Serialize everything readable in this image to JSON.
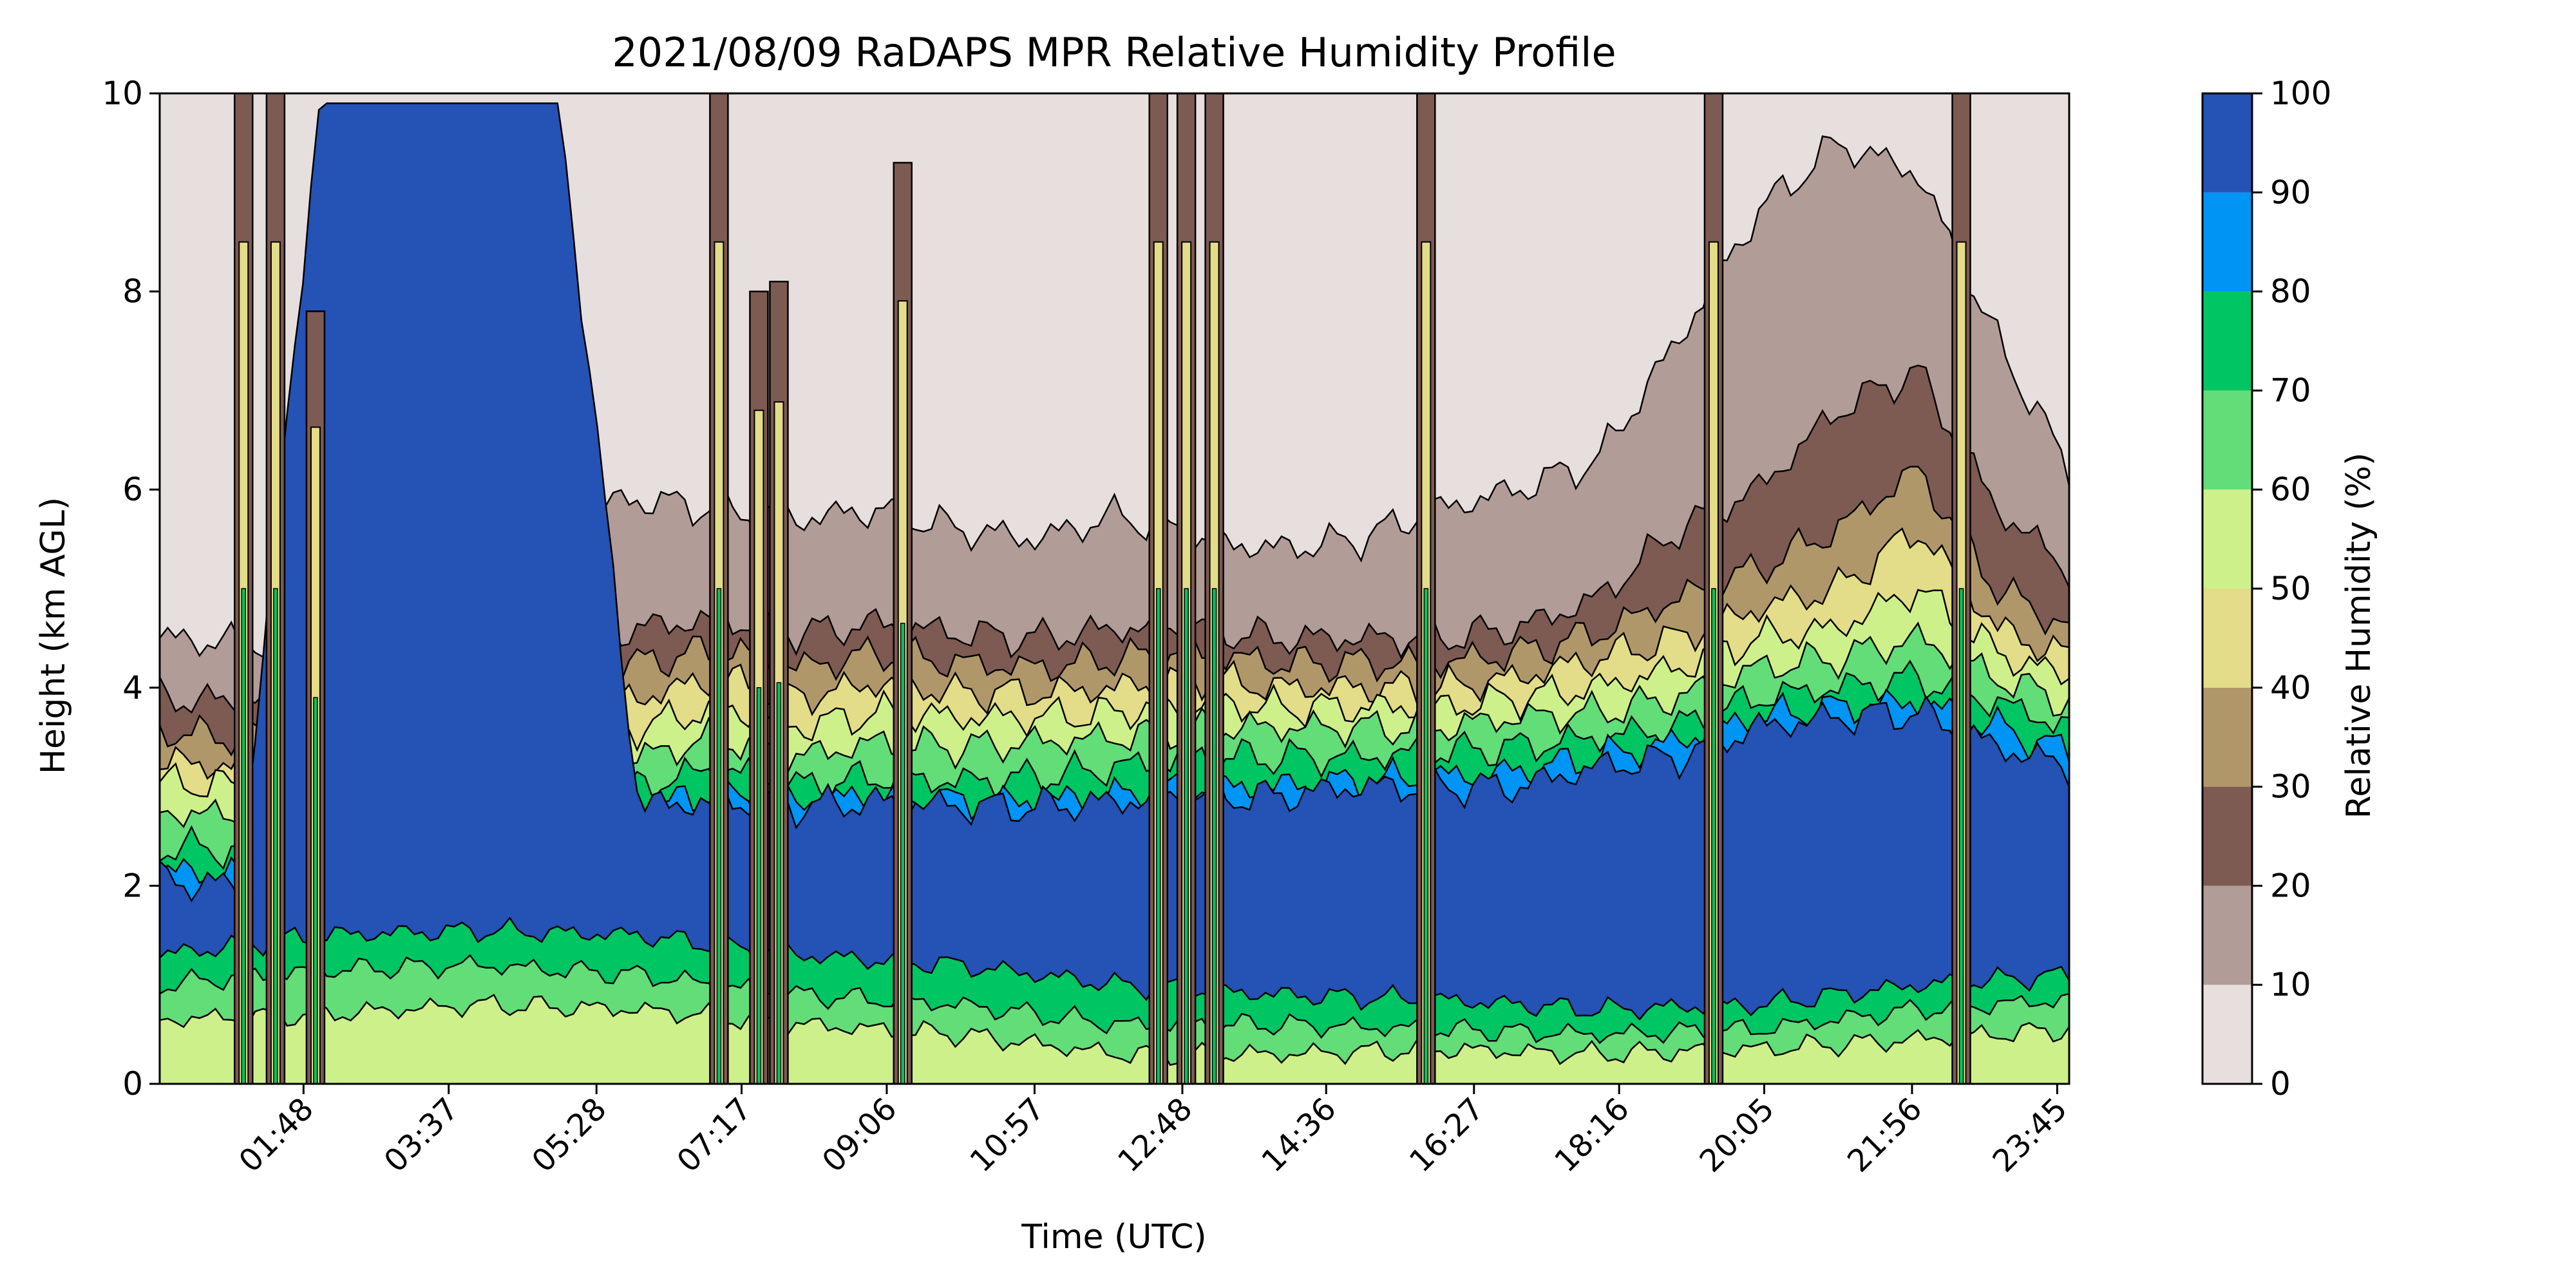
{
  "chart_data": {
    "type": "heatmap",
    "title": "2021/08/09 RaDAPS MPR Relative Humidity Profile",
    "xlabel": "Time (UTC)",
    "ylabel": "Height (km AGL)",
    "x_ticks": [
      "01:48",
      "03:37",
      "05:28",
      "07:17",
      "09:06",
      "10:57",
      "12:48",
      "14:36",
      "16:27",
      "18:16",
      "20:05",
      "21:56",
      "23:45"
    ],
    "x_tick_hours": [
      1.8,
      3.617,
      5.467,
      7.283,
      9.1,
      10.95,
      12.8,
      14.6,
      16.45,
      18.267,
      20.083,
      21.933,
      23.75
    ],
    "xlim_hours": [
      0.0,
      23.9
    ],
    "y_ticks": [
      "0",
      "2",
      "4",
      "6",
      "8",
      "10"
    ],
    "ylim": [
      0,
      10
    ],
    "colorbar": {
      "label": "Relative Humidity (%)",
      "levels": [
        0,
        10,
        20,
        30,
        40,
        50,
        60,
        70,
        80,
        90,
        100
      ],
      "tick_labels": [
        "0",
        "10",
        "20",
        "30",
        "40",
        "50",
        "60",
        "70",
        "80",
        "90",
        "100"
      ],
      "colors": [
        "#e7dfdd",
        "#b29c97",
        "#7d5a52",
        "#b0976a",
        "#e3dc88",
        "#cef08a",
        "#63dd78",
        "#00c563",
        "#0094f5",
        "#2452b5"
      ]
    },
    "contour_heights_km": [
      {
        "hour": 0.0,
        "h": [
          4.5,
          3.9,
          3.55,
          3.25,
          3.05,
          2.75,
          2.4,
          2.15,
          2.05
        ]
      },
      {
        "hour": 1.0,
        "h": [
          4.45,
          3.85,
          3.5,
          3.2,
          3.0,
          2.7,
          2.35,
          2.1,
          2.0
        ]
      },
      {
        "hour": 2.0,
        "h": [
          4.6,
          4.0,
          3.7,
          3.4,
          3.15,
          2.95,
          2.6,
          2.6,
          9.9
        ]
      },
      {
        "hour": 3.0,
        "h": [
          5.1,
          4.3,
          4.0,
          3.6,
          3.3,
          3.0,
          2.7,
          2.6,
          9.9
        ]
      },
      {
        "hour": 4.0,
        "h": [
          5.6,
          4.35,
          4.05,
          3.7,
          3.4,
          3.1,
          2.75,
          2.7,
          9.9
        ]
      },
      {
        "hour": 5.0,
        "h": [
          5.8,
          4.5,
          4.15,
          3.8,
          3.5,
          3.2,
          2.9,
          2.75,
          9.9
        ]
      },
      {
        "hour": 6.0,
        "h": [
          5.9,
          4.6,
          4.25,
          3.9,
          3.6,
          3.3,
          3.0,
          2.8,
          2.8
        ]
      },
      {
        "hour": 7.0,
        "h": [
          5.8,
          4.7,
          4.4,
          4.1,
          3.8,
          3.5,
          3.2,
          2.9,
          2.85
        ]
      },
      {
        "hour": 8.0,
        "h": [
          5.7,
          4.55,
          4.2,
          3.9,
          3.6,
          3.3,
          3.0,
          2.85,
          2.8
        ]
      },
      {
        "hour": 9.0,
        "h": [
          5.8,
          4.65,
          4.35,
          4.05,
          3.75,
          3.45,
          3.1,
          2.9,
          2.85
        ]
      },
      {
        "hour": 10.0,
        "h": [
          5.6,
          4.55,
          4.25,
          3.95,
          3.7,
          3.4,
          3.05,
          2.85,
          2.8
        ]
      },
      {
        "hour": 11.0,
        "h": [
          5.5,
          4.5,
          4.2,
          3.95,
          3.7,
          3.45,
          3.1,
          2.85,
          2.8
        ]
      },
      {
        "hour": 12.0,
        "h": [
          5.75,
          4.6,
          4.3,
          4.0,
          3.75,
          3.5,
          3.2,
          2.9,
          2.85
        ]
      },
      {
        "hour": 13.0,
        "h": [
          5.5,
          4.6,
          4.35,
          4.1,
          3.85,
          3.6,
          3.3,
          3.0,
          2.9
        ]
      },
      {
        "hour": 14.0,
        "h": [
          5.4,
          4.5,
          4.25,
          4.0,
          3.8,
          3.6,
          3.3,
          3.0,
          2.9
        ]
      },
      {
        "hour": 15.0,
        "h": [
          5.5,
          4.5,
          4.25,
          4.0,
          3.8,
          3.6,
          3.3,
          3.05,
          3.0
        ]
      },
      {
        "hour": 16.0,
        "h": [
          5.8,
          4.5,
          4.25,
          4.0,
          3.8,
          3.6,
          3.35,
          3.1,
          3.0
        ]
      },
      {
        "hour": 17.0,
        "h": [
          6.0,
          4.6,
          4.35,
          4.1,
          3.9,
          3.7,
          3.4,
          3.15,
          3.0
        ]
      },
      {
        "hour": 18.0,
        "h": [
          6.3,
          4.9,
          4.55,
          4.3,
          4.0,
          3.75,
          3.5,
          3.3,
          3.2
        ]
      },
      {
        "hour": 19.0,
        "h": [
          7.5,
          5.6,
          4.9,
          4.5,
          4.2,
          3.9,
          3.6,
          3.45,
          3.3
        ]
      },
      {
        "hour": 20.0,
        "h": [
          8.8,
          6.0,
          5.2,
          4.8,
          4.5,
          4.2,
          3.9,
          3.7,
          3.6
        ]
      },
      {
        "hour": 21.0,
        "h": [
          9.5,
          6.8,
          5.6,
          5.0,
          4.6,
          4.3,
          4.0,
          3.8,
          3.7
        ]
      },
      {
        "hour": 22.0,
        "h": [
          9.2,
          7.2,
          6.2,
          5.6,
          5.0,
          4.5,
          4.1,
          3.85,
          3.75
        ]
      },
      {
        "hour": 23.0,
        "h": [
          7.5,
          5.8,
          5.0,
          4.6,
          4.35,
          4.1,
          3.85,
          3.6,
          3.4
        ]
      },
      {
        "hour": 23.9,
        "h": [
          6.2,
          5.2,
          4.6,
          4.3,
          4.1,
          3.85,
          3.6,
          3.35,
          3.2
        ]
      }
    ],
    "boundary_layer_km": [
      {
        "hour": 0.0,
        "h": [
          0.65,
          1.0,
          1.3
        ]
      },
      {
        "hour": 2.0,
        "h": [
          0.7,
          1.15,
          1.5
        ]
      },
      {
        "hour": 4.0,
        "h": [
          0.8,
          1.2,
          1.55
        ]
      },
      {
        "hour": 6.0,
        "h": [
          0.75,
          1.1,
          1.5
        ]
      },
      {
        "hour": 8.0,
        "h": [
          0.6,
          0.9,
          1.3
        ]
      },
      {
        "hour": 10.0,
        "h": [
          0.5,
          0.8,
          1.2
        ]
      },
      {
        "hour": 12.0,
        "h": [
          0.3,
          0.6,
          1.0
        ]
      },
      {
        "hour": 14.0,
        "h": [
          0.3,
          0.6,
          0.9
        ]
      },
      {
        "hour": 16.0,
        "h": [
          0.35,
          0.55,
          0.85
        ]
      },
      {
        "hour": 18.0,
        "h": [
          0.3,
          0.5,
          0.75
        ]
      },
      {
        "hour": 20.0,
        "h": [
          0.35,
          0.55,
          0.8
        ]
      },
      {
        "hour": 22.0,
        "h": [
          0.45,
          0.75,
          1.0
        ]
      },
      {
        "hour": 23.9,
        "h": [
          0.55,
          0.85,
          1.1
        ]
      }
    ],
    "rain_spikes": [
      {
        "hour": 1.05,
        "top_km": 10
      },
      {
        "hour": 1.45,
        "top_km": 10
      },
      {
        "hour": 1.95,
        "top_km": 7.8
      },
      {
        "hour": 7.0,
        "top_km": 10
      },
      {
        "hour": 7.5,
        "top_km": 8.0
      },
      {
        "hour": 7.75,
        "top_km": 8.1
      },
      {
        "hour": 9.3,
        "top_km": 9.3
      },
      {
        "hour": 12.5,
        "top_km": 10
      },
      {
        "hour": 12.85,
        "top_km": 10
      },
      {
        "hour": 13.2,
        "top_km": 10
      },
      {
        "hour": 15.85,
        "top_km": 10
      },
      {
        "hour": 19.45,
        "top_km": 10
      },
      {
        "hour": 22.55,
        "top_km": 10
      }
    ]
  }
}
